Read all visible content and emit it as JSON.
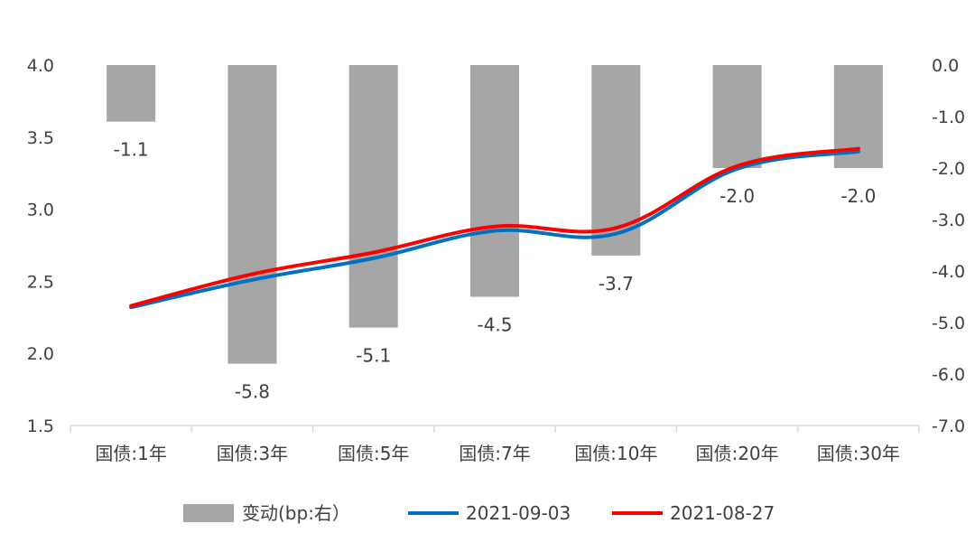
{
  "chart_data": {
    "type": "bar+line",
    "categories": [
      "国债:1年",
      "国债:3年",
      "国债:5年",
      "国债:7年",
      "国债:10年",
      "国债:20年",
      "国债:30年"
    ],
    "bar_series": {
      "name": "变动(bp:右）",
      "values": [
        -1.1,
        -5.8,
        -5.1,
        -4.5,
        -3.7,
        -2.0,
        -2.0
      ],
      "labels": [
        "-1.1",
        "-5.8",
        "-5.1",
        "-4.5",
        "-3.7",
        "-2.0",
        "-2.0"
      ],
      "color": "#a6a6a6",
      "axis": "right"
    },
    "series": [
      {
        "name": "2021-09-03",
        "values": [
          2.32,
          2.51,
          2.66,
          2.85,
          2.83,
          3.28,
          3.4
        ],
        "color": "#0070c0",
        "axis": "left"
      },
      {
        "name": "2021-08-27",
        "values": [
          2.33,
          2.55,
          2.7,
          2.88,
          2.87,
          3.3,
          3.42
        ],
        "color": "#ff0000",
        "axis": "left"
      }
    ],
    "y_left": {
      "range": [
        1.5,
        4.0
      ],
      "ticks": [
        "1.5",
        "2.0",
        "2.5",
        "3.0",
        "3.5",
        "4.0"
      ]
    },
    "y_right": {
      "range": [
        -7.0,
        0.0
      ],
      "ticks": [
        "-7.0",
        "-6.0",
        "-5.0",
        "-4.0",
        "-3.0",
        "-2.0",
        "-1.0",
        "0.0"
      ]
    },
    "grid": false,
    "legend_position": "bottom"
  }
}
